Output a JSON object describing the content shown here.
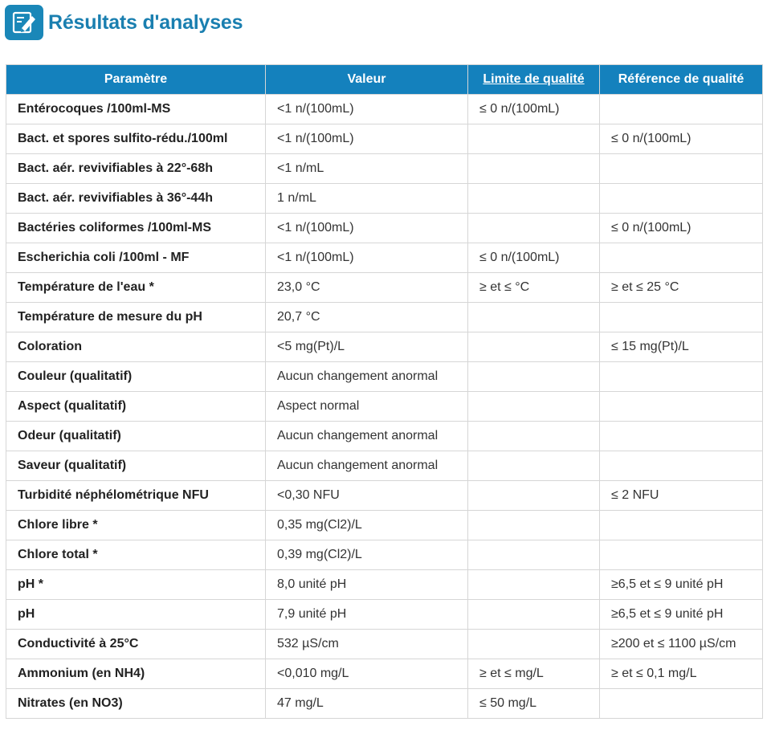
{
  "header": {
    "title": "Résultats d'analyses",
    "icon": "edit-document-icon",
    "accent_color": "#1a87b8"
  },
  "table": {
    "header_color": "#1481bd",
    "columns": [
      {
        "label": "Paramètre"
      },
      {
        "label": "Valeur"
      },
      {
        "label": "Limite de qualité",
        "link": true
      },
      {
        "label": "Référence de qualité"
      }
    ],
    "rows": [
      {
        "param": "Entérocoques /100ml-MS",
        "value": "<1 n/(100mL)",
        "limit": "≤ 0 n/(100mL)",
        "reference": ""
      },
      {
        "param": "Bact. et spores sulfito-rédu./100ml",
        "value": "<1 n/(100mL)",
        "limit": "",
        "reference": "≤ 0 n/(100mL)"
      },
      {
        "param": "Bact. aér. revivifiables à 22°-68h",
        "value": "<1 n/mL",
        "limit": "",
        "reference": ""
      },
      {
        "param": "Bact. aér. revivifiables à 36°-44h",
        "value": "1 n/mL",
        "limit": "",
        "reference": ""
      },
      {
        "param": "Bactéries coliformes /100ml-MS",
        "value": "<1 n/(100mL)",
        "limit": "",
        "reference": "≤ 0 n/(100mL)"
      },
      {
        "param": "Escherichia coli /100ml - MF",
        "value": "<1 n/(100mL)",
        "limit": "≤ 0 n/(100mL)",
        "reference": ""
      },
      {
        "param": "Température de l'eau *",
        "value": "23,0 °C",
        "limit": "≥ et ≤ °C",
        "reference": "≥ et ≤ 25 °C"
      },
      {
        "param": "Température de mesure du pH",
        "value": "20,7 °C",
        "limit": "",
        "reference": ""
      },
      {
        "param": "Coloration",
        "value": "<5 mg(Pt)/L",
        "limit": "",
        "reference": "≤ 15 mg(Pt)/L"
      },
      {
        "param": "Couleur (qualitatif)",
        "value": "Aucun changement anormal",
        "limit": "",
        "reference": ""
      },
      {
        "param": "Aspect (qualitatif)",
        "value": "Aspect normal",
        "limit": "",
        "reference": ""
      },
      {
        "param": "Odeur (qualitatif)",
        "value": "Aucun changement anormal",
        "limit": "",
        "reference": ""
      },
      {
        "param": "Saveur (qualitatif)",
        "value": "Aucun changement anormal",
        "limit": "",
        "reference": ""
      },
      {
        "param": "Turbidité néphélométrique NFU",
        "value": "<0,30 NFU",
        "limit": "",
        "reference": "≤ 2 NFU"
      },
      {
        "param": "Chlore libre *",
        "value": "0,35 mg(Cl2)/L",
        "limit": "",
        "reference": ""
      },
      {
        "param": "Chlore total *",
        "value": "0,39 mg(Cl2)/L",
        "limit": "",
        "reference": ""
      },
      {
        "param": "pH *",
        "value": "8,0 unité pH",
        "limit": "",
        "reference": "≥6,5 et ≤ 9 unité pH"
      },
      {
        "param": "pH",
        "value": "7,9 unité pH",
        "limit": "",
        "reference": "≥6,5 et ≤ 9 unité pH"
      },
      {
        "param": "Conductivité à 25°C",
        "value": "532 µS/cm",
        "limit": "",
        "reference": "≥200 et ≤ 1100 µS/cm"
      },
      {
        "param": "Ammonium (en NH4)",
        "value": "<0,010 mg/L",
        "limit": "≥ et ≤ mg/L",
        "reference": "≥ et ≤ 0,1 mg/L"
      },
      {
        "param": "Nitrates (en NO3)",
        "value": "47 mg/L",
        "limit": "≤ 50 mg/L",
        "reference": ""
      }
    ]
  }
}
